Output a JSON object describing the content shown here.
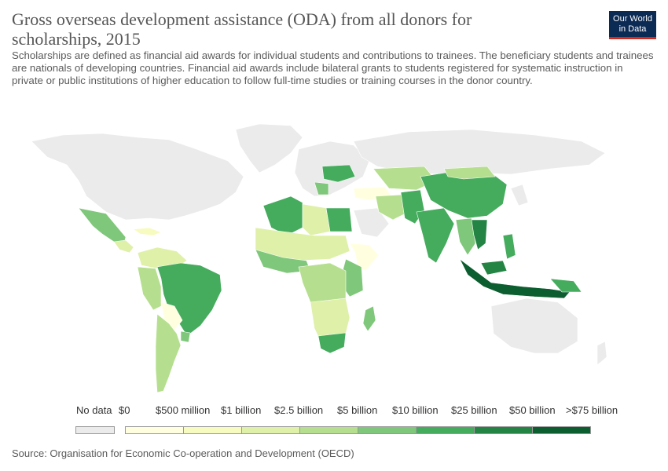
{
  "header": {
    "title": "Gross overseas development assistance (ODA) from all donors for scholarships, 2015",
    "subtitle": "Scholarships are defined as financial aid awards for individual students and contributions to trainees. The beneficiary students and trainees are nationals of developing countries. Financial aid awards include bilateral grants to students registered for systematic instruction in private or public institutions of higher education to follow full-time studies or training courses in the donor country."
  },
  "logo": {
    "line1": "Our World",
    "line2": "in Data"
  },
  "legend": {
    "no_data_label": "No data",
    "no_data_color": "#ebebeb",
    "bins": [
      {
        "label": "$0",
        "color": "#ffffe0"
      },
      {
        "label": "$500 million",
        "color": "#f7fbc0"
      },
      {
        "label": "$1 billion",
        "color": "#dff0a9"
      },
      {
        "label": "$2.5 billion",
        "color": "#b5df8f"
      },
      {
        "label": "$5 billion",
        "color": "#7fc77a"
      },
      {
        "label": "$10 billion",
        "color": "#45ab5d"
      },
      {
        "label": "$25 billion",
        "color": "#238443"
      },
      {
        "label": "$50 billion",
        "color": "#0c5d2f"
      },
      {
        "label": ">$75 billion",
        "color": ""
      }
    ]
  },
  "source": "Source: Organisation for Economic Co-operation and Development (OECD)"
}
